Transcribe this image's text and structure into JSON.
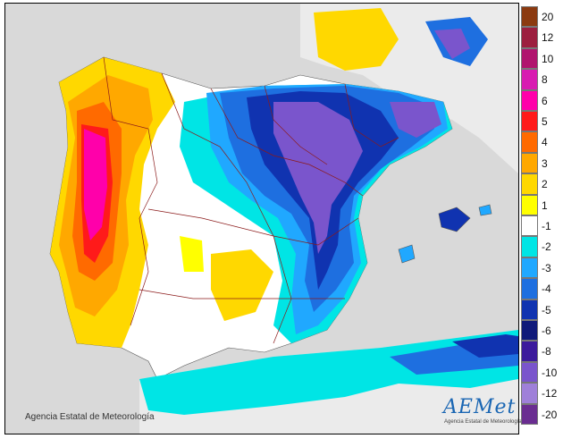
{
  "credit": "Agencia Estatal de Meteorología",
  "logo": {
    "name": "AEMet",
    "subtitle": "Agencia Estatal de Meteorología"
  },
  "legend": {
    "classes": [
      {
        "label": "20",
        "color": "#8b3a10"
      },
      {
        "label": "12",
        "color": "#9c1f3f"
      },
      {
        "label": "10",
        "color": "#b0146e"
      },
      {
        "label": "8",
        "color": "#d81bb1"
      },
      {
        "label": "6",
        "color": "#ff00aa"
      },
      {
        "label": "5",
        "color": "#ff1a1a"
      },
      {
        "label": "4",
        "color": "#ff6a00"
      },
      {
        "label": "3",
        "color": "#ffa800"
      },
      {
        "label": "2",
        "color": "#ffd800"
      },
      {
        "label": "1",
        "color": "#ffff00"
      },
      {
        "label": "-1",
        "color": "#ffffff"
      },
      {
        "label": "-2",
        "color": "#00e5e5"
      },
      {
        "label": "-3",
        "color": "#20a8ff"
      },
      {
        "label": "-4",
        "color": "#1e6fe0"
      },
      {
        "label": "-5",
        "color": "#1033b0"
      },
      {
        "label": "-6",
        "color": "#101a7a"
      },
      {
        "label": "-8",
        "color": "#3c1a9c"
      },
      {
        "label": "-10",
        "color": "#7a55cc"
      },
      {
        "label": "-12",
        "color": "#9f80d9"
      },
      {
        "label": "-20",
        "color": "#6a2d91"
      }
    ]
  }
}
